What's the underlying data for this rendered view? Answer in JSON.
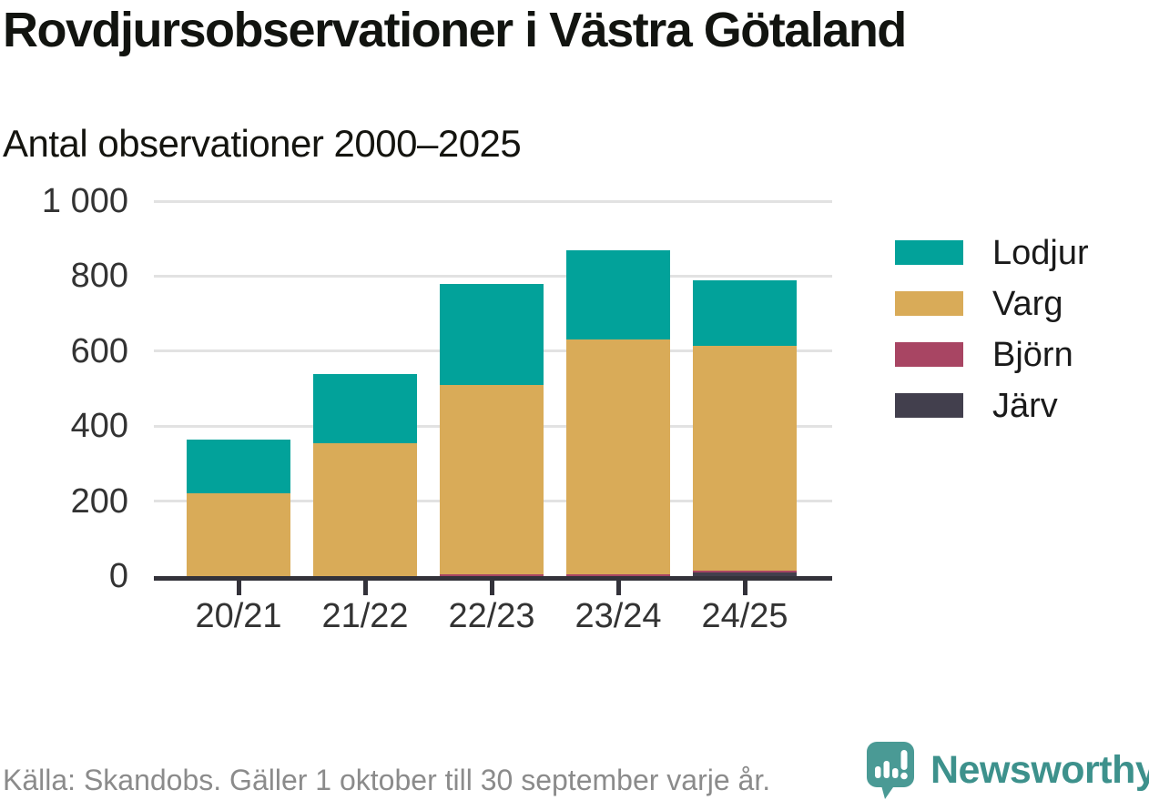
{
  "title": "Rovdjursobservationer i Västra Götaland",
  "subtitle": "Antal observationer 2000–2025",
  "source": "Källa: Skandobs. Gäller 1 oktober till 30 september varje år.",
  "branding": {
    "name": "Newsworthy",
    "icon": "newsworthy-speech-bubble-chart-icon",
    "icon_color": "#4a9a95",
    "text_color": "#3d918c"
  },
  "colors": {
    "background": "#ffffff",
    "grid": "#e2e2e2",
    "axis": "#33323a",
    "tick_labels": "#333333",
    "title_text": "#121410",
    "source_text": "#8b8b8b"
  },
  "chart_data": {
    "type": "bar",
    "stacked": true,
    "title": "Rovdjursobservationer i Västra Götaland",
    "subtitle": "Antal observationer 2000–2025",
    "xlabel": "",
    "ylabel": "",
    "categories": [
      "20/21",
      "21/22",
      "22/23",
      "23/24",
      "24/25"
    ],
    "series": [
      {
        "name": "Lodjur",
        "color": "#02a29a",
        "values": [
          145,
          185,
          270,
          240,
          175
        ]
      },
      {
        "name": "Varg",
        "color": "#d9ab58",
        "values": [
          220,
          355,
          505,
          625,
          600
        ]
      },
      {
        "name": "Björn",
        "color": "#a84563",
        "values": [
          0,
          0,
          5,
          5,
          5
        ]
      },
      {
        "name": "Järv",
        "color": "#423f4d",
        "values": [
          0,
          0,
          0,
          0,
          10
        ]
      }
    ],
    "stack_order_bottom_to_top": [
      "Järv",
      "Björn",
      "Varg",
      "Lodjur"
    ],
    "totals": [
      365,
      540,
      780,
      870,
      790
    ],
    "ylim": [
      0,
      1000
    ],
    "yticks": [
      0,
      200,
      400,
      600,
      800,
      1000
    ],
    "ytick_labels": [
      "0",
      "200",
      "400",
      "600",
      "800",
      "1 000"
    ],
    "grid": true,
    "legend_position": "right"
  }
}
